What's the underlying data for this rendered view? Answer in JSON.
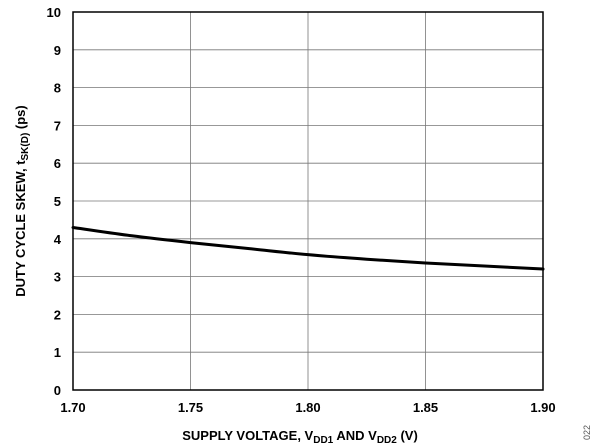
{
  "chart_data": {
    "type": "line",
    "xlabel": {
      "main": "SUPPLY VOLTAGE, V",
      "sub1": "DD1",
      "mid": " AND V",
      "sub2": "DD2",
      "end": " (V)"
    },
    "ylabel": {
      "main": "DUTY CYCLE SKEW, t",
      "sub": "SK(D)",
      "end": " (ps)"
    },
    "xlim": [
      1.7,
      1.9
    ],
    "ylim": [
      0,
      10
    ],
    "x_ticks": [
      "1.70",
      "1.75",
      "1.80",
      "1.85",
      "1.90"
    ],
    "y_ticks": [
      "0",
      "1",
      "2",
      "3",
      "4",
      "5",
      "6",
      "7",
      "8",
      "9",
      "10"
    ],
    "grid": true,
    "series": [
      {
        "x": [
          1.7,
          1.725,
          1.75,
          1.775,
          1.8,
          1.825,
          1.85,
          1.875,
          1.9
        ],
        "y": [
          4.3,
          4.08,
          3.9,
          3.74,
          3.58,
          3.46,
          3.36,
          3.28,
          3.2
        ]
      }
    ],
    "line_color": "#000000"
  },
  "figure_id": "022"
}
